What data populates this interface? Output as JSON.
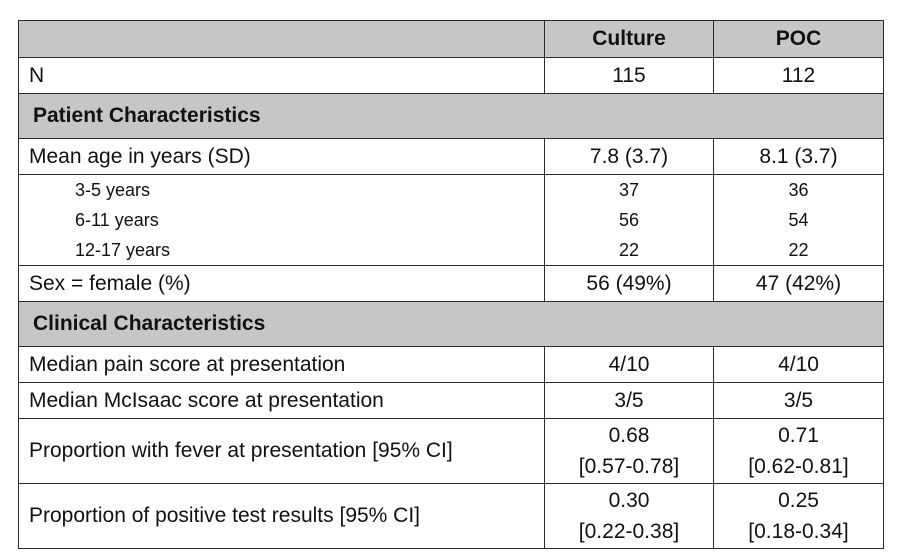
{
  "header": {
    "col_blank": "",
    "col_culture": "Culture",
    "col_poc": "POC"
  },
  "n_row": {
    "label": "N",
    "culture": "115",
    "poc": "112"
  },
  "patient_section": "Patient Characteristics",
  "mean_age": {
    "label": "Mean age in years (SD)",
    "culture": "7.8 (3.7)",
    "poc": "8.1 (3.7)"
  },
  "age_groups": [
    {
      "label": "3-5 years",
      "culture": "37",
      "poc": "36"
    },
    {
      "label": "6-11 years",
      "culture": "56",
      "poc": "54"
    },
    {
      "label": "12-17 years",
      "culture": "22",
      "poc": "22"
    }
  ],
  "sex": {
    "label": "Sex = female (%)",
    "culture": "56 (49%)",
    "poc": "47 (42%)"
  },
  "clinical_section": "Clinical Characteristics",
  "pain": {
    "label": "Median pain score at presentation",
    "culture": "4/10",
    "poc": "4/10"
  },
  "mcisaac": {
    "label": "Median McIsaac score at presentation",
    "culture": "3/5",
    "poc": "3/5"
  },
  "fever": {
    "label": "Proportion with fever at presentation [95% CI]",
    "culture_est": "0.68",
    "culture_ci": "[0.57-0.78]",
    "poc_est": "0.71",
    "poc_ci": "[0.62-0.81]"
  },
  "positive": {
    "label": "Proportion of positive test results [95% CI]",
    "culture_est": "0.30",
    "culture_ci": "[0.22-0.38]",
    "poc_est": "0.25",
    "poc_ci": "[0.18-0.34]"
  }
}
